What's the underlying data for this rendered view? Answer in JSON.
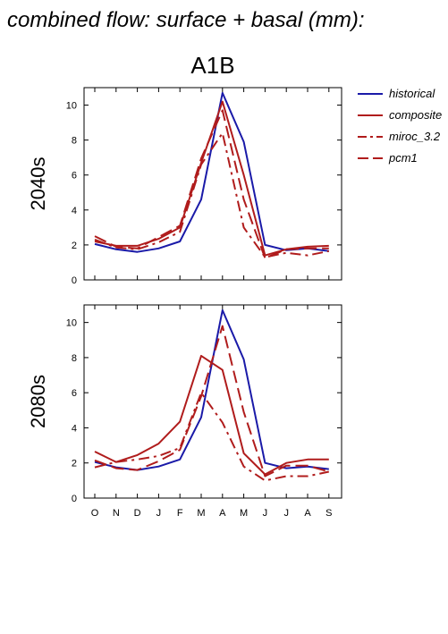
{
  "title": "combined flow: surface + basal (mm):",
  "subtitle": "A1B",
  "legend": [
    {
      "label": "historical",
      "color": "#1a1aa8",
      "dash": "solid"
    },
    {
      "label": "composite",
      "color": "#b01c1c",
      "dash": "solid"
    },
    {
      "label": "miroc_3.2",
      "color": "#b01c1c",
      "dash": "dashdot"
    },
    {
      "label": "pcm1",
      "color": "#b01c1c",
      "dash": "dash"
    }
  ],
  "chart_data": [
    {
      "type": "line",
      "ylabel": "2040s",
      "categories": [
        "O",
        "N",
        "D",
        "J",
        "F",
        "M",
        "A",
        "M",
        "J",
        "J",
        "A",
        "S"
      ],
      "ylim": [
        0,
        11
      ],
      "yticks": [
        0,
        2,
        4,
        6,
        8,
        10
      ],
      "series": [
        {
          "name": "historical",
          "color": "#1a1aa8",
          "dash": "solid",
          "values": [
            2.05,
            1.75,
            1.6,
            1.8,
            2.2,
            4.6,
            10.7,
            7.9,
            2.0,
            1.7,
            1.8,
            1.65
          ]
        },
        {
          "name": "composite",
          "color": "#b01c1c",
          "dash": "solid",
          "values": [
            2.2,
            1.95,
            1.95,
            2.35,
            3.0,
            6.7,
            10.2,
            6.0,
            1.4,
            1.75,
            1.9,
            1.95
          ]
        },
        {
          "name": "miroc_3.2",
          "color": "#b01c1c",
          "dash": "dashdot",
          "values": [
            2.3,
            1.85,
            1.75,
            2.15,
            2.75,
            6.6,
            8.4,
            3.0,
            1.3,
            1.55,
            1.4,
            1.65
          ]
        },
        {
          "name": "pcm1",
          "color": "#b01c1c",
          "dash": "dash",
          "values": [
            2.5,
            1.9,
            1.8,
            2.45,
            3.1,
            6.95,
            9.7,
            4.6,
            1.25,
            1.75,
            1.8,
            1.8
          ]
        }
      ]
    },
    {
      "type": "line",
      "ylabel": "2080s",
      "categories": [
        "O",
        "N",
        "D",
        "J",
        "F",
        "M",
        "A",
        "M",
        "J",
        "J",
        "A",
        "S"
      ],
      "ylim": [
        0,
        11
      ],
      "yticks": [
        0,
        2,
        4,
        6,
        8,
        10
      ],
      "series": [
        {
          "name": "historical",
          "color": "#1a1aa8",
          "dash": "solid",
          "values": [
            2.05,
            1.75,
            1.6,
            1.8,
            2.2,
            4.6,
            10.7,
            7.9,
            2.0,
            1.7,
            1.8,
            1.65
          ]
        },
        {
          "name": "composite",
          "color": "#b01c1c",
          "dash": "solid",
          "values": [
            2.65,
            2.05,
            2.45,
            3.1,
            4.35,
            8.1,
            7.3,
            2.55,
            1.35,
            2.0,
            2.2,
            2.2
          ]
        },
        {
          "name": "miroc_3.2",
          "color": "#b01c1c",
          "dash": "dashdot",
          "values": [
            1.75,
            2.05,
            2.2,
            2.4,
            2.85,
            6.0,
            4.3,
            1.8,
            1.0,
            1.25,
            1.25,
            1.5
          ]
        },
        {
          "name": "pcm1",
          "color": "#b01c1c",
          "dash": "dash",
          "values": [
            2.15,
            1.7,
            1.6,
            2.1,
            2.75,
            5.8,
            9.8,
            4.9,
            1.25,
            1.85,
            1.85,
            1.5
          ]
        }
      ]
    }
  ]
}
